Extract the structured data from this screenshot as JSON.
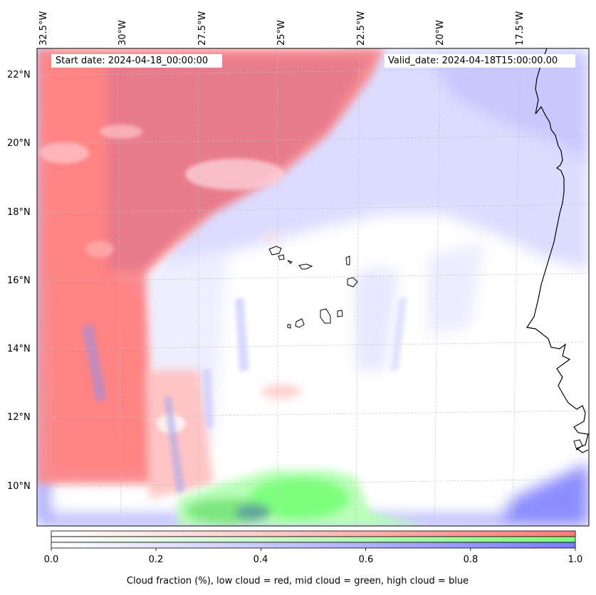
{
  "map": {
    "start_date_text": "Start date: 2024-04-18_00:00:00",
    "valid_date_text": "Valid_date: 2024-04-18T15:00:00.00",
    "longitude_labels": [
      "32.5°W",
      "30°W",
      "27.5°W",
      "25°W",
      "22.5°W",
      "20°W",
      "17.5°W"
    ],
    "latitude_labels": [
      "22°N",
      "20°N",
      "18°N",
      "16°N",
      "14°N",
      "12°N",
      "10°N"
    ],
    "layers": {
      "low_cloud_color": "#ff7b7b",
      "mid_cloud_color": "#7dff7d",
      "high_cloud_color": "#7b7bff",
      "coastline_color": "#000000",
      "gridline_color": "#bfbfbf"
    }
  },
  "colorbar": {
    "ticks": [
      "0.0",
      "0.2",
      "0.4",
      "0.6",
      "0.8",
      "1.0"
    ],
    "caption": "Cloud fraction (%), low cloud = red, mid cloud = green, high cloud = blue",
    "range": [
      0.0,
      1.0
    ]
  }
}
